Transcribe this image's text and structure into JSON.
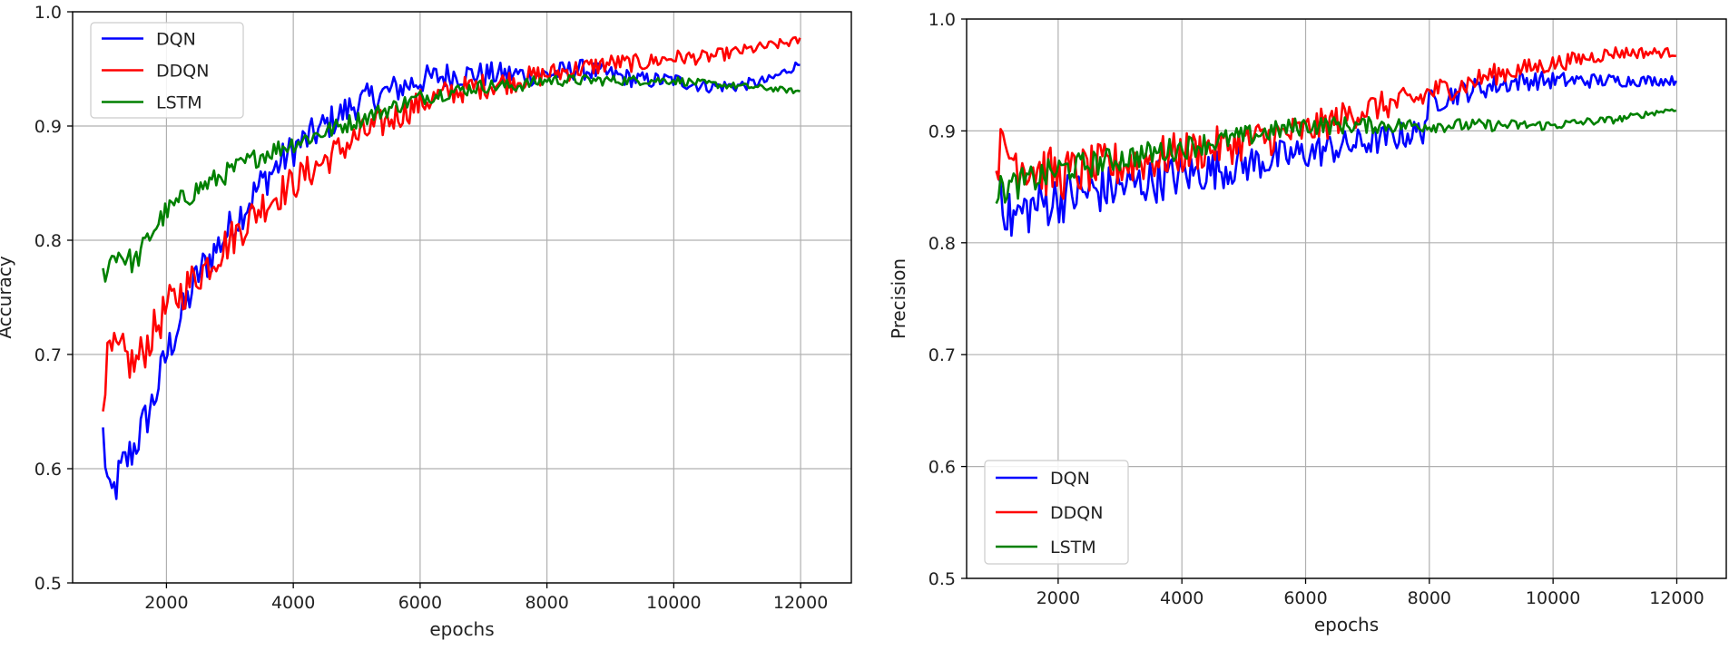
{
  "chart_data": [
    {
      "type": "line",
      "xlabel": "epochs",
      "ylabel": "Accuracy",
      "xlim": [
        520,
        12800
      ],
      "ylim": [
        0.5,
        1.0
      ],
      "x_ticks": [
        2000,
        4000,
        6000,
        8000,
        10000,
        12000
      ],
      "x_tick_labels": [
        "2000",
        "4000",
        "6000",
        "8000",
        "10000",
        "12000"
      ],
      "y_ticks": [
        0.5,
        0.6,
        0.7,
        0.8,
        0.9,
        1.0
      ],
      "y_tick_labels": [
        "0.5",
        "0.6",
        "0.7",
        "0.8",
        "0.9",
        "1.0"
      ],
      "grid": true,
      "legend_position": "upper-left",
      "noise": [
        0.02,
        0.004
      ],
      "series": [
        {
          "name": "DQN",
          "color": "#0000ff",
          "anchors": [
            [
              1000,
              0.63
            ],
            [
              1100,
              0.57
            ],
            [
              1300,
              0.6
            ],
            [
              1500,
              0.62
            ],
            [
              1800,
              0.66
            ],
            [
              2000,
              0.7
            ],
            [
              2500,
              0.77
            ],
            [
              3000,
              0.81
            ],
            [
              3500,
              0.85
            ],
            [
              4000,
              0.88
            ],
            [
              4500,
              0.9
            ],
            [
              5000,
              0.92
            ],
            [
              5500,
              0.93
            ],
            [
              6000,
              0.94
            ],
            [
              6500,
              0.945
            ],
            [
              7000,
              0.945
            ],
            [
              7500,
              0.945
            ],
            [
              8000,
              0.945
            ],
            [
              8500,
              0.95
            ],
            [
              9000,
              0.945
            ],
            [
              9500,
              0.94
            ],
            [
              10000,
              0.94
            ],
            [
              10500,
              0.935
            ],
            [
              11000,
              0.935
            ],
            [
              11500,
              0.94
            ],
            [
              12000,
              0.955
            ]
          ]
        },
        {
          "name": "DDQN",
          "color": "#ff0000",
          "anchors": [
            [
              1000,
              0.67
            ],
            [
              1100,
              0.7
            ],
            [
              1300,
              0.7
            ],
            [
              1500,
              0.69
            ],
            [
              1800,
              0.72
            ],
            [
              2000,
              0.74
            ],
            [
              2500,
              0.77
            ],
            [
              3000,
              0.8
            ],
            [
              3500,
              0.83
            ],
            [
              4000,
              0.85
            ],
            [
              4500,
              0.87
            ],
            [
              5000,
              0.89
            ],
            [
              5500,
              0.905
            ],
            [
              6000,
              0.92
            ],
            [
              6500,
              0.93
            ],
            [
              7000,
              0.935
            ],
            [
              7500,
              0.94
            ],
            [
              8000,
              0.945
            ],
            [
              8500,
              0.95
            ],
            [
              9000,
              0.955
            ],
            [
              9500,
              0.955
            ],
            [
              10000,
              0.96
            ],
            [
              10500,
              0.96
            ],
            [
              11000,
              0.965
            ],
            [
              11500,
              0.97
            ],
            [
              12000,
              0.975
            ]
          ]
        },
        {
          "name": "LSTM",
          "color": "#008000",
          "anchors": [
            [
              1000,
              0.77
            ],
            [
              1200,
              0.79
            ],
            [
              1500,
              0.78
            ],
            [
              1800,
              0.81
            ],
            [
              2000,
              0.825
            ],
            [
              2500,
              0.845
            ],
            [
              3000,
              0.86
            ],
            [
              3500,
              0.875
            ],
            [
              4000,
              0.885
            ],
            [
              4500,
              0.895
            ],
            [
              5000,
              0.905
            ],
            [
              5500,
              0.915
            ],
            [
              6000,
              0.925
            ],
            [
              6500,
              0.93
            ],
            [
              7000,
              0.935
            ],
            [
              7500,
              0.935
            ],
            [
              8000,
              0.94
            ],
            [
              8500,
              0.94
            ],
            [
              9000,
              0.94
            ],
            [
              9500,
              0.94
            ],
            [
              10000,
              0.94
            ],
            [
              10500,
              0.937
            ],
            [
              11000,
              0.935
            ],
            [
              11500,
              0.933
            ],
            [
              12000,
              0.93
            ]
          ]
        }
      ]
    },
    {
      "type": "line",
      "xlabel": "epochs",
      "ylabel": "Precision",
      "xlim": [
        520,
        12800
      ],
      "ylim": [
        0.5,
        1.0
      ],
      "x_ticks": [
        2000,
        4000,
        6000,
        8000,
        10000,
        12000
      ],
      "x_tick_labels": [
        "2000",
        "4000",
        "6000",
        "8000",
        "10000",
        "12000"
      ],
      "y_ticks": [
        0.5,
        0.6,
        0.7,
        0.8,
        0.9,
        1.0
      ],
      "y_tick_labels": [
        "0.5",
        "0.6",
        "0.7",
        "0.8",
        "0.9",
        "1.0"
      ],
      "grid": true,
      "legend_position": "lower-left",
      "noise": [
        0.025,
        0.004
      ],
      "series": [
        {
          "name": "DQN",
          "color": "#0000ff",
          "anchors": [
            [
              1000,
              0.87
            ],
            [
              1200,
              0.82
            ],
            [
              1500,
              0.83
            ],
            [
              2000,
              0.84
            ],
            [
              2500,
              0.845
            ],
            [
              3000,
              0.85
            ],
            [
              3500,
              0.855
            ],
            [
              4000,
              0.86
            ],
            [
              4500,
              0.865
            ],
            [
              5000,
              0.87
            ],
            [
              5500,
              0.875
            ],
            [
              6000,
              0.88
            ],
            [
              6500,
              0.885
            ],
            [
              7000,
              0.89
            ],
            [
              7500,
              0.895
            ],
            [
              7900,
              0.9
            ],
            [
              8000,
              0.925
            ],
            [
              8500,
              0.935
            ],
            [
              9000,
              0.94
            ],
            [
              9500,
              0.945
            ],
            [
              10000,
              0.945
            ],
            [
              10500,
              0.945
            ],
            [
              11000,
              0.945
            ],
            [
              11500,
              0.945
            ],
            [
              12000,
              0.945
            ]
          ]
        },
        {
          "name": "DDQN",
          "color": "#ff0000",
          "anchors": [
            [
              1000,
              0.88
            ],
            [
              1200,
              0.88
            ],
            [
              1500,
              0.87
            ],
            [
              2000,
              0.86
            ],
            [
              2500,
              0.865
            ],
            [
              3000,
              0.87
            ],
            [
              3500,
              0.875
            ],
            [
              4000,
              0.88
            ],
            [
              4500,
              0.885
            ],
            [
              5000,
              0.89
            ],
            [
              5500,
              0.895
            ],
            [
              6000,
              0.9
            ],
            [
              6500,
              0.91
            ],
            [
              7000,
              0.92
            ],
            [
              7500,
              0.925
            ],
            [
              7900,
              0.93
            ],
            [
              8000,
              0.935
            ],
            [
              8500,
              0.94
            ],
            [
              9000,
              0.95
            ],
            [
              9500,
              0.955
            ],
            [
              10000,
              0.96
            ],
            [
              10500,
              0.965
            ],
            [
              11000,
              0.97
            ],
            [
              11500,
              0.97
            ],
            [
              12000,
              0.97
            ]
          ]
        },
        {
          "name": "LSTM",
          "color": "#008000",
          "anchors": [
            [
              1000,
              0.845
            ],
            [
              1200,
              0.85
            ],
            [
              1500,
              0.855
            ],
            [
              2000,
              0.865
            ],
            [
              2500,
              0.87
            ],
            [
              3000,
              0.875
            ],
            [
              3500,
              0.88
            ],
            [
              4000,
              0.885
            ],
            [
              4500,
              0.89
            ],
            [
              5000,
              0.895
            ],
            [
              5500,
              0.9
            ],
            [
              6000,
              0.905
            ],
            [
              6500,
              0.905
            ],
            [
              7000,
              0.905
            ],
            [
              7500,
              0.905
            ],
            [
              8000,
              0.905
            ],
            [
              8500,
              0.905
            ],
            [
              9000,
              0.905
            ],
            [
              9500,
              0.905
            ],
            [
              10000,
              0.905
            ],
            [
              10500,
              0.908
            ],
            [
              11000,
              0.91
            ],
            [
              11500,
              0.915
            ],
            [
              12000,
              0.92
            ]
          ]
        }
      ]
    }
  ]
}
